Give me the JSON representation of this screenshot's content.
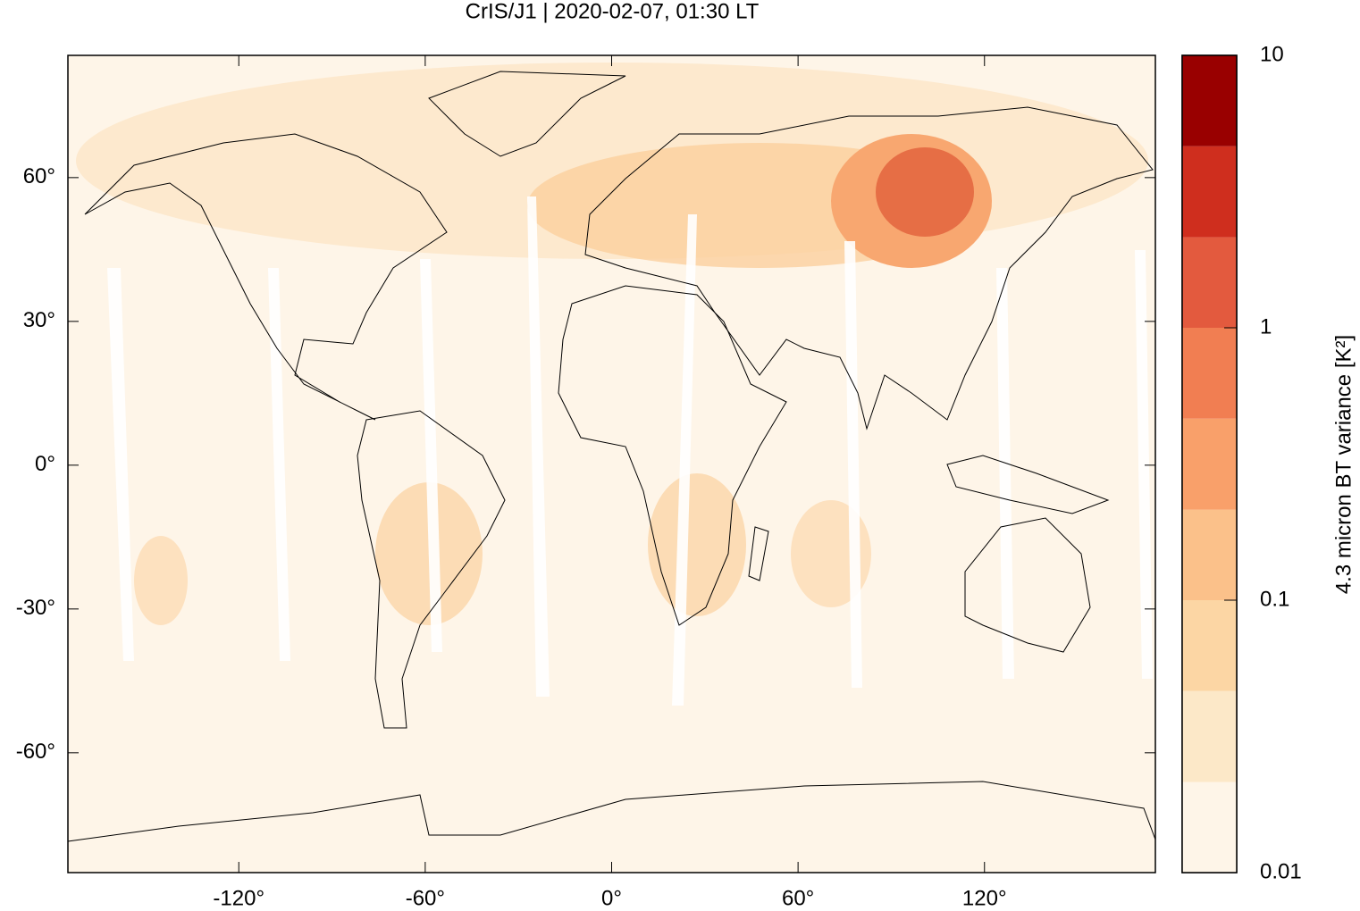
{
  "chart_data": {
    "type": "map",
    "title": "CrIS/J1 | 2020-02-07, 01:30 LT",
    "xlim": [
      -175,
      175
    ],
    "ylim": [
      -85,
      85.5
    ],
    "xticks": [
      {
        "value": -120,
        "label": "-120°"
      },
      {
        "value": -60,
        "label": "-60°"
      },
      {
        "value": 0,
        "label": "0°"
      },
      {
        "value": 60,
        "label": "60°"
      },
      {
        "value": 120,
        "label": "120°"
      }
    ],
    "yticks": [
      {
        "value": 60,
        "label": "60°"
      },
      {
        "value": 30,
        "label": "30°"
      },
      {
        "value": 0,
        "label": "0°"
      },
      {
        "value": -30,
        "label": "-30°"
      },
      {
        "value": -60,
        "label": "-60°"
      }
    ],
    "colorbar": {
      "label": "4.3 micron BT variance [K²]",
      "log": true,
      "lim": [
        0.01,
        10
      ],
      "levels": [
        0.01,
        0.0215,
        0.0464,
        0.1,
        0.215,
        0.464,
        1,
        2.15,
        4.64,
        10
      ],
      "colors": [
        "#fef5e8",
        "#fce8c8",
        "#fcd6a4",
        "#fbc18a",
        "#f9a06a",
        "#f17e52",
        "#e35a3e",
        "#cf2e1e",
        "#990000"
      ],
      "ticks": [
        0.01,
        0.1,
        1,
        10
      ]
    }
  }
}
